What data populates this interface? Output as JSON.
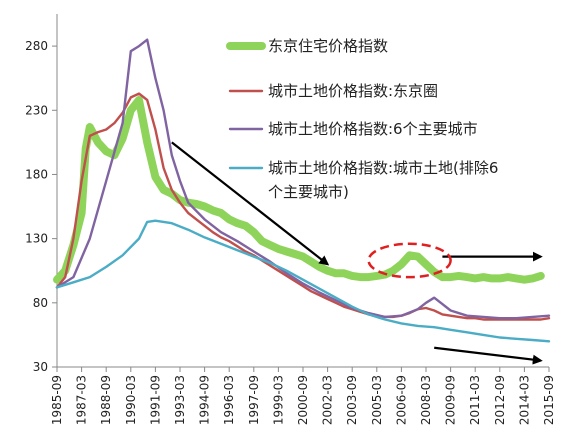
{
  "chart_data": {
    "type": "line",
    "title": "",
    "xlabel": "",
    "ylabel": "",
    "x_start": "1985-09",
    "x_end": "2015-09",
    "x_ticks": [
      "1985-09",
      "1987-03",
      "1988-09",
      "1990-03",
      "1991-09",
      "1993-03",
      "1994-09",
      "1996-03",
      "1997-09",
      "1999-03",
      "2000-09",
      "2002-03",
      "2003-09",
      "2005-03",
      "2006-09",
      "2008-03",
      "2009-09",
      "2011-03",
      "2012-09",
      "2014-03",
      "2015-09"
    ],
    "y_ticks": [
      30,
      80,
      130,
      180,
      230,
      280
    ],
    "ylim": [
      30,
      305
    ],
    "grid": false,
    "legend_position": "top-right",
    "series": [
      {
        "name": "东京住宅价格指数",
        "color": "#8fd45a",
        "points": [
          [
            "1985-09",
            98
          ],
          [
            "1986-03",
            105
          ],
          [
            "1986-09",
            125
          ],
          [
            "1987-03",
            150
          ],
          [
            "1987-06",
            200
          ],
          [
            "1987-09",
            217
          ],
          [
            "1988-03",
            205
          ],
          [
            "1988-09",
            198
          ],
          [
            "1989-03",
            195
          ],
          [
            "1989-09",
            208
          ],
          [
            "1990-03",
            230
          ],
          [
            "1990-09",
            238
          ],
          [
            "1991-03",
            205
          ],
          [
            "1991-09",
            178
          ],
          [
            "1992-03",
            168
          ],
          [
            "1992-09",
            165
          ],
          [
            "1993-03",
            160
          ],
          [
            "1993-09",
            158
          ],
          [
            "1994-03",
            157
          ],
          [
            "1994-09",
            155
          ],
          [
            "1995-03",
            152
          ],
          [
            "1995-09",
            150
          ],
          [
            "1996-03",
            145
          ],
          [
            "1996-09",
            142
          ],
          [
            "1997-03",
            140
          ],
          [
            "1997-09",
            135
          ],
          [
            "1998-03",
            128
          ],
          [
            "1998-09",
            125
          ],
          [
            "1999-03",
            122
          ],
          [
            "1999-09",
            120
          ],
          [
            "2000-03",
            118
          ],
          [
            "2000-09",
            116
          ],
          [
            "2001-03",
            112
          ],
          [
            "2001-09",
            108
          ],
          [
            "2002-03",
            105
          ],
          [
            "2002-09",
            103
          ],
          [
            "2003-03",
            103
          ],
          [
            "2003-09",
            101
          ],
          [
            "2004-03",
            100
          ],
          [
            "2004-09",
            100
          ],
          [
            "2005-03",
            101
          ],
          [
            "2005-09",
            102
          ],
          [
            "2006-03",
            105
          ],
          [
            "2006-09",
            110
          ],
          [
            "2007-03",
            117
          ],
          [
            "2007-09",
            116
          ],
          [
            "2008-03",
            110
          ],
          [
            "2008-09",
            104
          ],
          [
            "2009-03",
            100
          ],
          [
            "2009-09",
            100
          ],
          [
            "2010-03",
            101
          ],
          [
            "2010-09",
            100
          ],
          [
            "2011-03",
            99
          ],
          [
            "2011-09",
            100
          ],
          [
            "2012-03",
            99
          ],
          [
            "2012-09",
            99
          ],
          [
            "2013-03",
            100
          ],
          [
            "2013-09",
            99
          ],
          [
            "2014-03",
            98
          ],
          [
            "2014-09",
            99
          ],
          [
            "2015-03",
            101
          ]
        ]
      },
      {
        "name": "城市土地价格指数:东京圈",
        "color": "#c0504d",
        "points": [
          [
            "1985-09",
            92
          ],
          [
            "1986-03",
            100
          ],
          [
            "1986-09",
            130
          ],
          [
            "1987-03",
            175
          ],
          [
            "1987-09",
            210
          ],
          [
            "1988-03",
            213
          ],
          [
            "1988-09",
            215
          ],
          [
            "1989-03",
            220
          ],
          [
            "1989-09",
            228
          ],
          [
            "1990-03",
            240
          ],
          [
            "1990-09",
            243
          ],
          [
            "1991-03",
            238
          ],
          [
            "1991-09",
            215
          ],
          [
            "1992-03",
            185
          ],
          [
            "1992-09",
            168
          ],
          [
            "1993-03",
            158
          ],
          [
            "1993-09",
            150
          ],
          [
            "1994-03",
            145
          ],
          [
            "1994-09",
            140
          ],
          [
            "1995-03",
            135
          ],
          [
            "1995-09",
            131
          ],
          [
            "1996-03",
            128
          ],
          [
            "1996-09",
            124
          ],
          [
            "1997-03",
            120
          ],
          [
            "1997-09",
            117
          ],
          [
            "1998-03",
            113
          ],
          [
            "1998-09",
            109
          ],
          [
            "1999-03",
            105
          ],
          [
            "1999-09",
            101
          ],
          [
            "2000-03",
            97
          ],
          [
            "2000-09",
            93
          ],
          [
            "2001-03",
            89
          ],
          [
            "2001-09",
            86
          ],
          [
            "2002-03",
            83
          ],
          [
            "2002-09",
            80
          ],
          [
            "2003-03",
            77
          ],
          [
            "2003-09",
            75
          ],
          [
            "2004-03",
            73
          ],
          [
            "2004-09",
            71
          ],
          [
            "2005-03",
            70
          ],
          [
            "2005-09",
            69
          ],
          [
            "2006-03",
            69
          ],
          [
            "2006-09",
            70
          ],
          [
            "2007-03",
            72
          ],
          [
            "2007-09",
            75
          ],
          [
            "2008-03",
            76
          ],
          [
            "2008-09",
            74
          ],
          [
            "2009-03",
            71
          ],
          [
            "2009-09",
            70
          ],
          [
            "2010-03",
            69
          ],
          [
            "2010-09",
            68
          ],
          [
            "2011-03",
            68
          ],
          [
            "2011-09",
            67
          ],
          [
            "2012-03",
            67
          ],
          [
            "2012-09",
            67
          ],
          [
            "2013-03",
            67
          ],
          [
            "2013-09",
            67
          ],
          [
            "2014-03",
            67
          ],
          [
            "2014-09",
            67
          ],
          [
            "2015-03",
            67
          ],
          [
            "2015-09",
            68
          ]
        ]
      },
      {
        "name": "城市土地价格指数:6个主要城市",
        "color": "#8064a2",
        "points": [
          [
            "1985-09",
            92
          ],
          [
            "1986-09",
            100
          ],
          [
            "1987-09",
            130
          ],
          [
            "1988-09",
            175
          ],
          [
            "1989-09",
            220
          ],
          [
            "1990-03",
            276
          ],
          [
            "1990-09",
            280
          ],
          [
            "1991-03",
            285
          ],
          [
            "1991-09",
            255
          ],
          [
            "1992-03",
            230
          ],
          [
            "1992-09",
            195
          ],
          [
            "1993-03",
            175
          ],
          [
            "1993-09",
            158
          ],
          [
            "1994-09",
            145
          ],
          [
            "1995-09",
            135
          ],
          [
            "1996-09",
            128
          ],
          [
            "1997-09",
            120
          ],
          [
            "1998-09",
            112
          ],
          [
            "1999-09",
            103
          ],
          [
            "2000-09",
            95
          ],
          [
            "2001-09",
            88
          ],
          [
            "2002-09",
            82
          ],
          [
            "2003-09",
            76
          ],
          [
            "2004-09",
            72
          ],
          [
            "2005-09",
            69
          ],
          [
            "2006-09",
            70
          ],
          [
            "2007-09",
            75
          ],
          [
            "2008-03",
            80
          ],
          [
            "2008-09",
            84
          ],
          [
            "2009-03",
            79
          ],
          [
            "2009-09",
            74
          ],
          [
            "2010-09",
            70
          ],
          [
            "2011-09",
            69
          ],
          [
            "2012-09",
            68
          ],
          [
            "2013-09",
            68
          ],
          [
            "2014-09",
            69
          ],
          [
            "2015-09",
            70
          ]
        ]
      },
      {
        "name": "城市土地价格指数:城市土地(排除6个主要城市)",
        "color": "#4bacc6",
        "points": [
          [
            "1985-09",
            92
          ],
          [
            "1986-09",
            96
          ],
          [
            "1987-09",
            100
          ],
          [
            "1988-09",
            108
          ],
          [
            "1989-09",
            117
          ],
          [
            "1990-09",
            130
          ],
          [
            "1991-03",
            143
          ],
          [
            "1991-09",
            144
          ],
          [
            "1992-09",
            142
          ],
          [
            "1993-09",
            137
          ],
          [
            "1994-09",
            131
          ],
          [
            "1995-09",
            126
          ],
          [
            "1996-09",
            121
          ],
          [
            "1997-09",
            116
          ],
          [
            "1998-09",
            111
          ],
          [
            "1999-09",
            105
          ],
          [
            "2000-09",
            98
          ],
          [
            "2001-09",
            91
          ],
          [
            "2002-09",
            84
          ],
          [
            "2003-09",
            77
          ],
          [
            "2004-09",
            71
          ],
          [
            "2005-09",
            67
          ],
          [
            "2006-09",
            64
          ],
          [
            "2007-09",
            62
          ],
          [
            "2008-09",
            61
          ],
          [
            "2009-09",
            59
          ],
          [
            "2010-09",
            57
          ],
          [
            "2011-09",
            55
          ],
          [
            "2012-09",
            53
          ],
          [
            "2013-09",
            52
          ],
          [
            "2014-09",
            51
          ],
          [
            "2015-09",
            50
          ]
        ]
      }
    ],
    "annotations": {
      "arrows": [
        {
          "from": [
            "1992-09",
            205
          ],
          "to": [
            "2002-03",
            110
          ]
        },
        {
          "from": [
            "2009-03",
            116
          ],
          "to": [
            "2015-03",
            116
          ]
        },
        {
          "from": [
            "2008-09",
            45
          ],
          "to": [
            "2015-03",
            35
          ]
        }
      ],
      "ellipse": {
        "center": [
          "2007-03",
          113
        ],
        "rx_months": 30,
        "ry_units": 13,
        "color": "#e02020"
      }
    }
  }
}
